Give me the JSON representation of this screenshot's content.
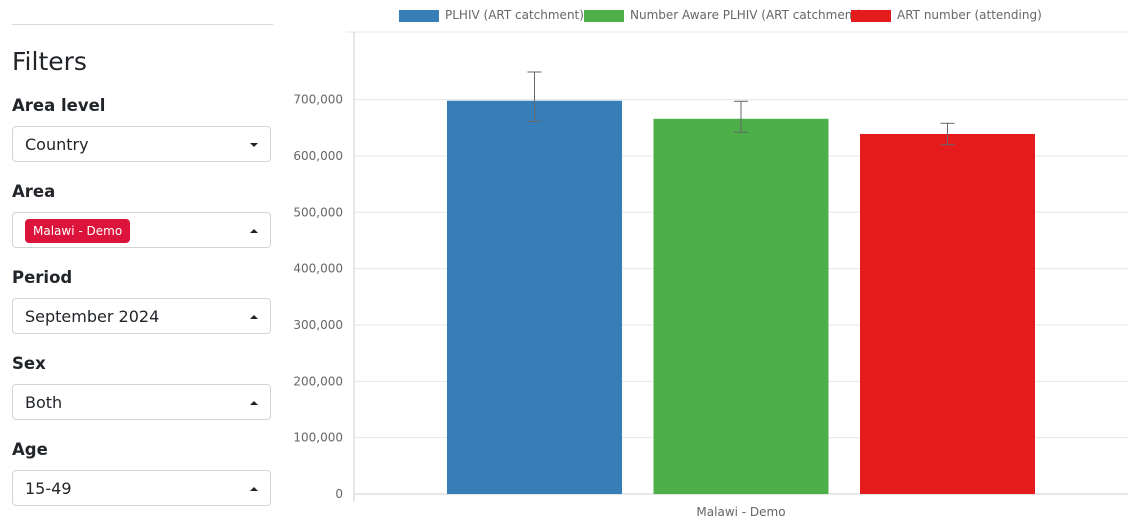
{
  "filters": {
    "title": "Filters",
    "area_level": {
      "label": "Area level",
      "value": "Country"
    },
    "area": {
      "label": "Area",
      "selected_chip": "Malawi - Demo"
    },
    "period": {
      "label": "Period",
      "value": "September 2024"
    },
    "sex": {
      "label": "Sex",
      "value": "Both"
    },
    "age": {
      "label": "Age",
      "value": "15-49"
    }
  },
  "chart_data": {
    "type": "bar",
    "categories": [
      "Malawi - Demo"
    ],
    "series": [
      {
        "name": "PLHIV (ART catchment)",
        "color": "#377eb8",
        "values": [
          698000
        ],
        "error_lower": [
          661000
        ],
        "error_upper": [
          749000
        ]
      },
      {
        "name": "Number Aware PLHIV (ART catchment)",
        "color": "#4daf4a",
        "values": [
          666000
        ],
        "error_lower": [
          642000
        ],
        "error_upper": [
          697000
        ]
      },
      {
        "name": "ART number (attending)",
        "color": "#e41a1c",
        "values": [
          639000
        ],
        "error_lower": [
          620000
        ],
        "error_upper": [
          658000
        ]
      }
    ],
    "ylim": [
      0,
      820000
    ],
    "yticks": [
      "0",
      "100,000",
      "200,000",
      "300,000",
      "400,000",
      "500,000",
      "600,000",
      "700,000"
    ],
    "ytick_values": [
      0,
      100000,
      200000,
      300000,
      400000,
      500000,
      600000,
      700000
    ],
    "grid": true,
    "legend_position": "top"
  }
}
